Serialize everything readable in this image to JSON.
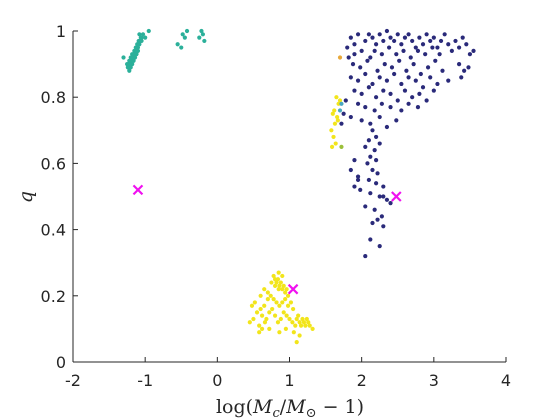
{
  "chart_data": {
    "type": "scatter",
    "title": "",
    "xlabel": "log(M_c/M_⊙ − 1)",
    "xlabel_parts": {
      "prefix": "log(",
      "m1": "M",
      "sub1": "c",
      "slash": "/",
      "m2": "M",
      "sub2": "⊙",
      "suffix": " − 1)"
    },
    "ylabel": "q",
    "xlim": [
      -2,
      4
    ],
    "ylim": [
      0,
      1
    ],
    "x_ticks": [
      -2,
      -1,
      0,
      1,
      2,
      3,
      4
    ],
    "y_ticks": [
      0,
      0.2,
      0.4,
      0.6,
      0.8,
      1
    ],
    "x_tick_labels": [
      "-2",
      "-1",
      "0",
      "1",
      "2",
      "3",
      "4"
    ],
    "y_tick_labels": [
      "0",
      "0.2",
      "0.4",
      "0.6",
      "0.8",
      "1"
    ],
    "grid": false,
    "series": [
      {
        "color": "#2a2a7a",
        "marker": "dot",
        "points": [
          [
            1.85,
            0.98
          ],
          [
            1.9,
            0.96
          ],
          [
            1.95,
            0.99
          ],
          [
            2.05,
            0.97
          ],
          [
            2.1,
            0.99
          ],
          [
            2.15,
            0.98
          ],
          [
            2.2,
            0.96
          ],
          [
            2.25,
            0.99
          ],
          [
            2.3,
            0.97
          ],
          [
            2.35,
            1.0
          ],
          [
            2.4,
            0.98
          ],
          [
            2.45,
            0.97
          ],
          [
            2.5,
            0.99
          ],
          [
            2.55,
            0.96
          ],
          [
            2.6,
            0.98
          ],
          [
            2.65,
            0.99
          ],
          [
            2.7,
            0.97
          ],
          [
            2.75,
            0.95
          ],
          [
            2.8,
            0.98
          ],
          [
            2.85,
            0.96
          ],
          [
            2.9,
            0.99
          ],
          [
            2.95,
            0.97
          ],
          [
            3.0,
            0.98
          ],
          [
            3.05,
            0.95
          ],
          [
            3.1,
            0.97
          ],
          [
            3.15,
            0.99
          ],
          [
            3.2,
            0.96
          ],
          [
            3.25,
            0.94
          ],
          [
            3.3,
            0.97
          ],
          [
            3.35,
            0.95
          ],
          [
            3.4,
            0.98
          ],
          [
            3.45,
            0.96
          ],
          [
            3.5,
            0.93
          ],
          [
            3.55,
            0.94
          ],
          [
            1.8,
            0.95
          ],
          [
            1.82,
            0.92
          ],
          [
            1.9,
            0.93
          ],
          [
            2.0,
            0.94
          ],
          [
            2.12,
            0.92
          ],
          [
            2.18,
            0.94
          ],
          [
            2.28,
            0.93
          ],
          [
            2.38,
            0.95
          ],
          [
            2.48,
            0.93
          ],
          [
            2.58,
            0.94
          ],
          [
            2.68,
            0.92
          ],
          [
            2.78,
            0.94
          ],
          [
            2.88,
            0.93
          ],
          [
            2.98,
            0.95
          ],
          [
            3.08,
            0.93
          ],
          [
            1.88,
            0.9
          ],
          [
            1.98,
            0.89
          ],
          [
            2.08,
            0.91
          ],
          [
            2.22,
            0.88
          ],
          [
            2.32,
            0.9
          ],
          [
            2.42,
            0.89
          ],
          [
            2.52,
            0.91
          ],
          [
            2.62,
            0.88
          ],
          [
            2.72,
            0.9
          ],
          [
            2.82,
            0.87
          ],
          [
            2.92,
            0.89
          ],
          [
            3.02,
            0.91
          ],
          [
            3.12,
            0.88
          ],
          [
            3.35,
            0.9
          ],
          [
            3.42,
            0.88
          ],
          [
            3.48,
            0.89
          ],
          [
            1.85,
            0.86
          ],
          [
            1.95,
            0.85
          ],
          [
            2.05,
            0.87
          ],
          [
            2.15,
            0.84
          ],
          [
            2.25,
            0.86
          ],
          [
            2.35,
            0.85
          ],
          [
            2.45,
            0.87
          ],
          [
            2.55,
            0.84
          ],
          [
            2.65,
            0.86
          ],
          [
            2.75,
            0.85
          ],
          [
            2.85,
            0.83
          ],
          [
            2.95,
            0.86
          ],
          [
            3.05,
            0.84
          ],
          [
            3.2,
            0.85
          ],
          [
            3.38,
            0.86
          ],
          [
            1.9,
            0.82
          ],
          [
            2.0,
            0.81
          ],
          [
            2.1,
            0.83
          ],
          [
            2.2,
            0.8
          ],
          [
            2.3,
            0.82
          ],
          [
            2.4,
            0.81
          ],
          [
            2.5,
            0.79
          ],
          [
            2.6,
            0.82
          ],
          [
            2.7,
            0.8
          ],
          [
            2.8,
            0.81
          ],
          [
            2.9,
            0.79
          ],
          [
            3.0,
            0.82
          ],
          [
            1.78,
            0.79
          ],
          [
            1.95,
            0.78
          ],
          [
            2.05,
            0.77
          ],
          [
            2.18,
            0.76
          ],
          [
            2.28,
            0.78
          ],
          [
            2.4,
            0.77
          ],
          [
            2.55,
            0.76
          ],
          [
            2.65,
            0.78
          ],
          [
            2.78,
            0.77
          ],
          [
            1.75,
            0.75
          ],
          [
            1.72,
            0.72
          ],
          [
            1.85,
            0.74
          ],
          [
            2.0,
            0.73
          ],
          [
            2.12,
            0.72
          ],
          [
            2.25,
            0.74
          ],
          [
            2.35,
            0.71
          ],
          [
            2.48,
            0.73
          ],
          [
            2.15,
            0.7
          ],
          [
            2.2,
            0.68
          ],
          [
            2.1,
            0.67
          ],
          [
            2.25,
            0.66
          ],
          [
            2.18,
            0.64
          ],
          [
            2.05,
            0.65
          ],
          [
            2.12,
            0.62
          ],
          [
            2.2,
            0.61
          ],
          [
            2.08,
            0.6
          ],
          [
            2.15,
            0.58
          ],
          [
            2.22,
            0.57
          ],
          [
            1.9,
            0.61
          ],
          [
            1.85,
            0.58
          ],
          [
            1.95,
            0.56
          ],
          [
            2.1,
            0.55
          ],
          [
            2.2,
            0.54
          ],
          [
            2.3,
            0.53
          ],
          [
            1.98,
            0.52
          ],
          [
            2.12,
            0.51
          ],
          [
            2.25,
            0.5
          ],
          [
            2.35,
            0.49
          ],
          [
            2.05,
            0.47
          ],
          [
            2.18,
            0.46
          ],
          [
            2.28,
            0.44
          ],
          [
            2.22,
            0.43
          ],
          [
            2.3,
            0.41
          ],
          [
            2.15,
            0.42
          ],
          [
            2.12,
            0.37
          ],
          [
            2.25,
            0.35
          ],
          [
            2.05,
            0.32
          ],
          [
            1.95,
            0.55
          ],
          [
            1.9,
            0.53
          ],
          [
            2.3,
            0.5
          ],
          [
            2.4,
            0.48
          ]
        ]
      },
      {
        "color": "#2bb09a",
        "marker": "dot",
        "points": [
          [
            -1.25,
            0.9
          ],
          [
            -1.24,
            0.89
          ],
          [
            -1.23,
            0.9
          ],
          [
            -1.22,
            0.91
          ],
          [
            -1.21,
            0.9
          ],
          [
            -1.2,
            0.92
          ],
          [
            -1.19,
            0.91
          ],
          [
            -1.18,
            0.93
          ],
          [
            -1.17,
            0.92
          ],
          [
            -1.16,
            0.93
          ],
          [
            -1.15,
            0.94
          ],
          [
            -1.14,
            0.93
          ],
          [
            -1.13,
            0.95
          ],
          [
            -1.12,
            0.94
          ],
          [
            -1.11,
            0.96
          ],
          [
            -1.1,
            0.95
          ],
          [
            -1.09,
            0.97
          ],
          [
            -1.08,
            0.96
          ],
          [
            -1.07,
            0.97
          ],
          [
            -1.06,
            0.98
          ],
          [
            -1.05,
            0.98
          ],
          [
            -1.03,
            0.99
          ],
          [
            -1.0,
            0.98
          ],
          [
            -0.95,
            1.0
          ],
          [
            -1.22,
            0.88
          ],
          [
            -1.2,
            0.89
          ],
          [
            -1.18,
            0.9
          ],
          [
            -1.16,
            0.91
          ],
          [
            -1.14,
            0.92
          ],
          [
            -1.12,
            0.93
          ],
          [
            -1.1,
            0.94
          ],
          [
            -1.3,
            0.92
          ],
          [
            -0.55,
            0.96
          ],
          [
            -0.5,
            0.95
          ],
          [
            -0.45,
            0.98
          ],
          [
            -0.48,
            0.99
          ],
          [
            -0.42,
            1.0
          ],
          [
            -0.25,
            0.98
          ],
          [
            -0.2,
            0.99
          ],
          [
            -0.18,
            0.97
          ],
          [
            -0.22,
            1.0
          ],
          [
            -1.05,
            0.97
          ],
          [
            -1.08,
            0.99
          ]
        ]
      },
      {
        "color": "#f2e51b",
        "marker": "dot",
        "points": [
          [
            0.78,
            0.26
          ],
          [
            0.8,
            0.25
          ],
          [
            0.82,
            0.24
          ],
          [
            0.84,
            0.25
          ],
          [
            0.86,
            0.23
          ],
          [
            0.88,
            0.24
          ],
          [
            0.9,
            0.22
          ],
          [
            0.92,
            0.23
          ],
          [
            0.94,
            0.21
          ],
          [
            0.96,
            0.22
          ],
          [
            0.98,
            0.2
          ],
          [
            0.85,
            0.22
          ],
          [
            0.8,
            0.23
          ],
          [
            0.75,
            0.24
          ],
          [
            0.7,
            0.19
          ],
          [
            0.65,
            0.17
          ],
          [
            0.6,
            0.16
          ],
          [
            0.55,
            0.15
          ],
          [
            0.5,
            0.13
          ],
          [
            0.45,
            0.12
          ],
          [
            0.58,
            0.11
          ],
          [
            0.62,
            0.14
          ],
          [
            0.68,
            0.13
          ],
          [
            0.72,
            0.15
          ],
          [
            0.76,
            0.16
          ],
          [
            0.8,
            0.14
          ],
          [
            0.84,
            0.12
          ],
          [
            0.88,
            0.13
          ],
          [
            0.92,
            0.15
          ],
          [
            0.96,
            0.14
          ],
          [
            1.0,
            0.13
          ],
          [
            1.04,
            0.12
          ],
          [
            1.08,
            0.11
          ],
          [
            1.1,
            0.13
          ],
          [
            1.12,
            0.14
          ],
          [
            1.14,
            0.12
          ],
          [
            1.16,
            0.11
          ],
          [
            1.18,
            0.13
          ],
          [
            1.2,
            0.12
          ],
          [
            1.22,
            0.11
          ],
          [
            1.24,
            0.13
          ],
          [
            1.26,
            0.12
          ],
          [
            1.28,
            0.11
          ],
          [
            1.32,
            0.1
          ],
          [
            1.05,
            0.16
          ],
          [
            1.02,
            0.18
          ],
          [
            0.98,
            0.17
          ],
          [
            0.94,
            0.19
          ],
          [
            0.9,
            0.18
          ],
          [
            0.86,
            0.17
          ],
          [
            0.82,
            0.18
          ],
          [
            0.78,
            0.19
          ],
          [
            0.74,
            0.2
          ],
          [
            0.7,
            0.21
          ],
          [
            0.66,
            0.12
          ],
          [
            0.62,
            0.1
          ],
          [
            0.58,
            0.09
          ],
          [
            0.72,
            0.1
          ],
          [
            0.86,
            0.09
          ],
          [
            0.95,
            0.1
          ],
          [
            1.06,
            0.09
          ],
          [
            1.14,
            0.08
          ],
          [
            1.1,
            0.06
          ],
          [
            0.65,
            0.22
          ],
          [
            0.6,
            0.2
          ],
          [
            0.52,
            0.18
          ],
          [
            0.48,
            0.17
          ],
          [
            0.85,
            0.27
          ],
          [
            0.9,
            0.26
          ],
          [
            1.65,
            0.8
          ],
          [
            1.68,
            0.78
          ],
          [
            1.62,
            0.76
          ],
          [
            1.6,
            0.75
          ],
          [
            1.66,
            0.74
          ],
          [
            1.63,
            0.72
          ],
          [
            1.58,
            0.7
          ],
          [
            1.61,
            0.68
          ],
          [
            1.64,
            0.66
          ],
          [
            1.59,
            0.65
          ],
          [
            1.67,
            0.73
          ],
          [
            1.7,
            0.79
          ]
        ]
      },
      {
        "color": "#4aa7c0",
        "marker": "dot",
        "points": [
          [
            1.72,
            0.78
          ],
          [
            1.7,
            0.76
          ]
        ]
      },
      {
        "color": "#9bbf3a",
        "marker": "dot",
        "points": [
          [
            1.72,
            0.65
          ]
        ]
      },
      {
        "color": "#e8a83a",
        "marker": "dot",
        "points": [
          [
            1.7,
            0.92
          ]
        ]
      },
      {
        "color": "#f010f0",
        "marker": "x",
        "points": [
          [
            -1.1,
            0.52
          ],
          [
            2.48,
            0.5
          ],
          [
            1.05,
            0.22
          ]
        ]
      }
    ]
  }
}
